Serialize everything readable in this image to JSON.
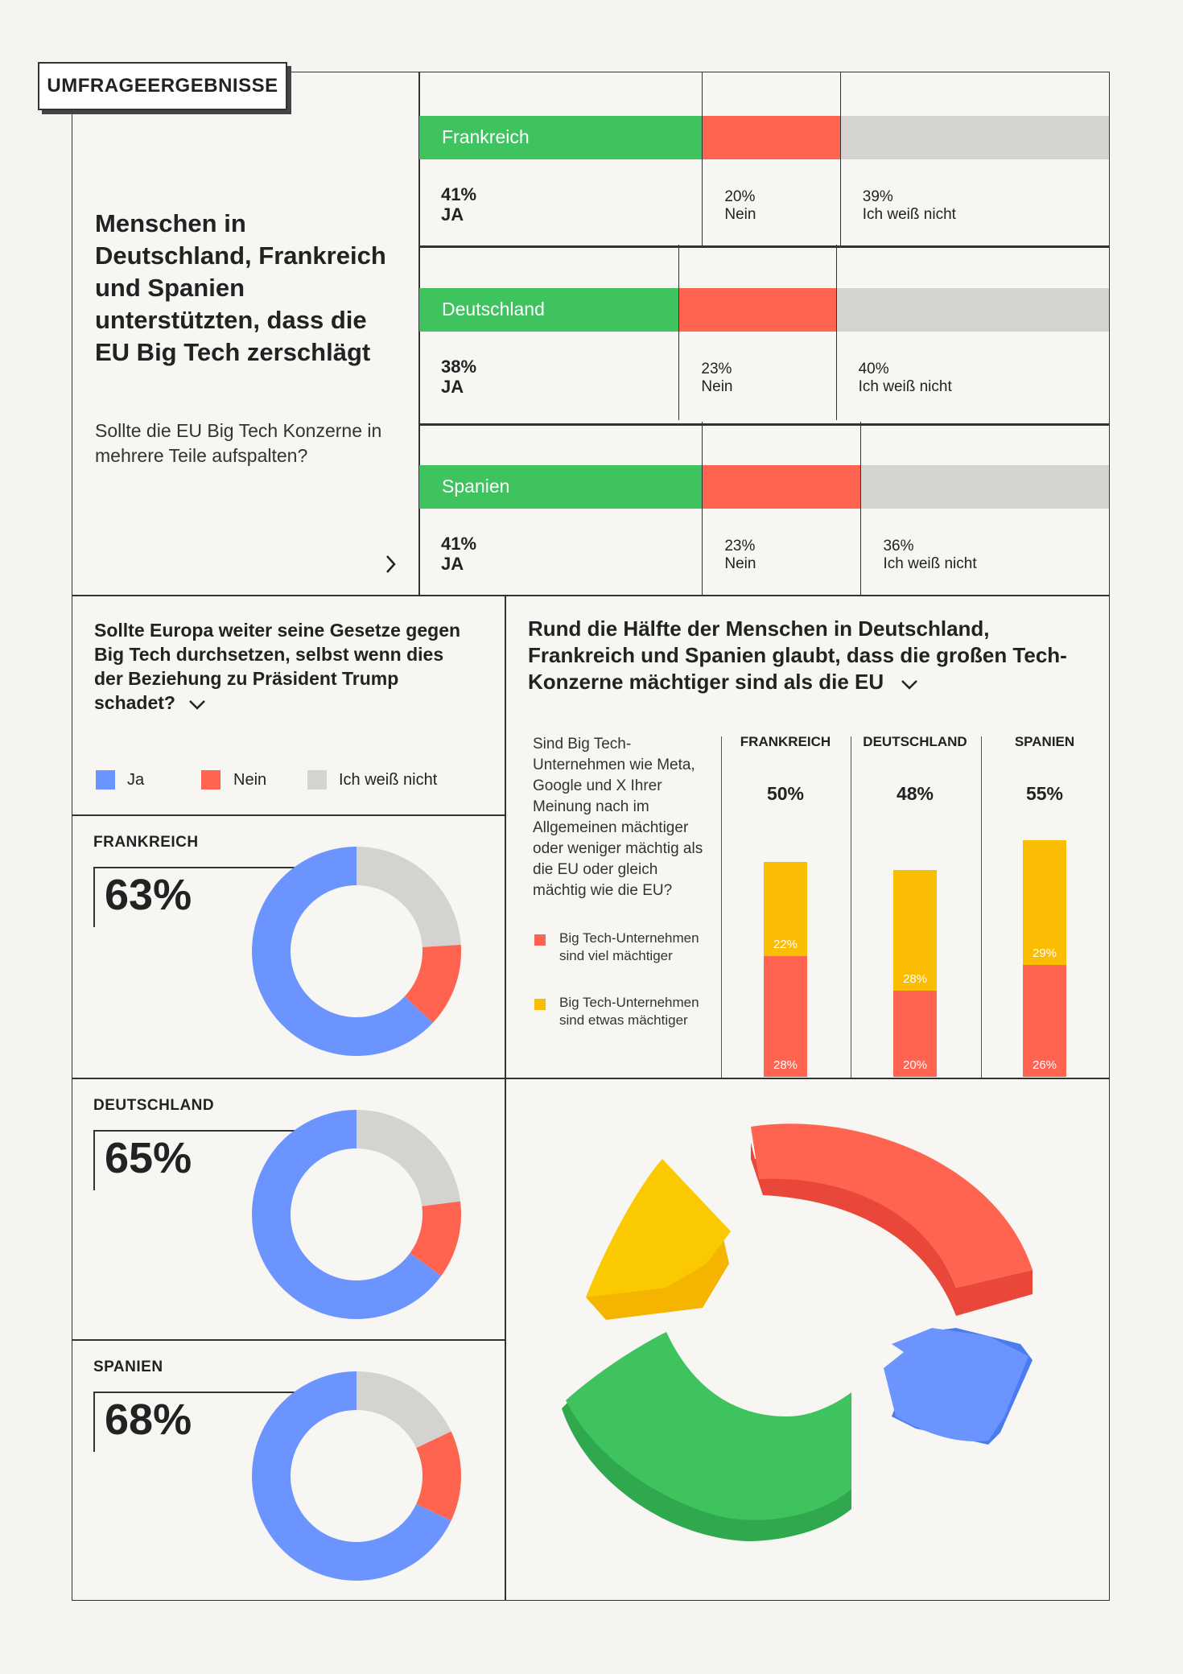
{
  "tag": "UMFRAGEERGEBNISSE",
  "colors": {
    "green": "#3ec35f",
    "red": "#ff6450",
    "grey": "#d4d3d0",
    "blue": "#6b94ff",
    "yellow": "#fbbc04"
  },
  "panel1": {
    "headline": "Menschen in Deutschland, Frankreich und Spanien unterstützten, dass die EU Big Tech zerschlägt",
    "question": "Sollte die EU Big Tech Konzerne in mehrere Teile aufspalten?",
    "next_icon": "chevron-right-icon"
  },
  "panel2": {
    "question": "Sollte Europa weiter seine Gesetze gegen Big Tech durchsetzen, selbst wenn dies der Beziehung zu Präsident Trump schadet?",
    "legend": [
      "Ja",
      "Nein",
      "Ich weiß nicht"
    ]
  },
  "panel3": {
    "headline": "Rund die Hälfte der Menschen in Deutschland, Frankreich und Spanien glaubt, dass die großen Tech-Konzerne mächtiger sind als die EU",
    "question": "Sind Big Tech-Unternehmen wie Meta, Google und X Ihrer Meinung nach im Allgemeinen mächtiger oder weniger mächtig als die EU oder gleich mächtig wie die EU?",
    "legend": [
      "Big Tech-Unternehmen sind viel mächtiger",
      "Big Tech-Unternehmen sind etwas mächtiger"
    ]
  },
  "chart_data": [
    {
      "type": "bar",
      "orientation": "horizontal-stacked",
      "categories": [
        "Frankreich",
        "Deutschland",
        "Spanien"
      ],
      "series": [
        {
          "name": "JA",
          "values": [
            41,
            38,
            41
          ],
          "labels": [
            "41%",
            "38%",
            "41%"
          ]
        },
        {
          "name": "Nein",
          "values": [
            20,
            23,
            23
          ],
          "labels": [
            "20%",
            "23%",
            "23%"
          ]
        },
        {
          "name": "Ich weiß nicht",
          "values": [
            39,
            40,
            36
          ],
          "labels": [
            "39%",
            "40%",
            "36%"
          ]
        }
      ]
    },
    {
      "type": "pie",
      "donut": true,
      "charts": [
        {
          "name": "FRANKREICH",
          "label": "63%",
          "values": [
            63,
            13,
            24
          ]
        },
        {
          "name": "DEUTSCHLAND",
          "label": "65%",
          "values": [
            65,
            12,
            23
          ]
        },
        {
          "name": "SPANIEN",
          "label": "68%",
          "values": [
            68,
            14,
            18
          ]
        }
      ],
      "slice_names": [
        "Ja",
        "Nein",
        "Ich weiß nicht"
      ]
    },
    {
      "type": "bar",
      "orientation": "vertical-stacked",
      "categories": [
        "FRANKREICH",
        "DEUTSCHLAND",
        "SPANIEN"
      ],
      "totals": [
        "50%",
        "48%",
        "55%"
      ],
      "total_values": [
        50,
        48,
        55
      ],
      "series": [
        {
          "name": "Big Tech-Unternehmen sind viel mächtiger",
          "values": [
            28,
            20,
            26
          ],
          "labels": [
            "28%",
            "20%",
            "26%"
          ]
        },
        {
          "name": "Big Tech-Unternehmen sind etwas mächtiger",
          "values": [
            22,
            28,
            29
          ],
          "labels": [
            "22%",
            "28%",
            "29%"
          ]
        }
      ]
    }
  ]
}
